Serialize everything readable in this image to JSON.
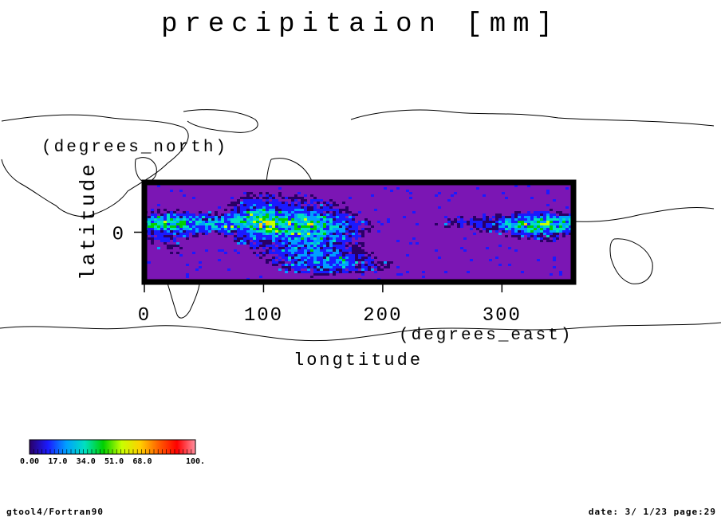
{
  "title": "precipitaion [mm]",
  "footer": {
    "left": "gtool4/Fortran90",
    "right": "date: 3/ 1/23 page:29"
  },
  "chart_data": {
    "type": "heatmap",
    "title": "precipitaion [mm]",
    "xlabel": "longtitude",
    "xunits": "(degrees_east)",
    "ylabel": "latitude",
    "yunits": "(degrees_north)",
    "xlim": [
      0,
      360
    ],
    "ylim": [
      -30,
      30
    ],
    "xticks": [
      0,
      100,
      200,
      300
    ],
    "yticks": [
      0
    ],
    "grid": false,
    "colorbar": {
      "ticks": [
        "0.00",
        "17.0",
        "34.0",
        "51.0",
        "68.0",
        "100."
      ],
      "min": 0,
      "max": 100,
      "colors": [
        "#2a0066",
        "#1a1aff",
        "#00a0ff",
        "#00e0c0",
        "#00d000",
        "#c8ff00",
        "#ffd000",
        "#ff6000",
        "#ff0000",
        "#ff90a0"
      ]
    },
    "background_field_color": "#7b16b4"
  }
}
